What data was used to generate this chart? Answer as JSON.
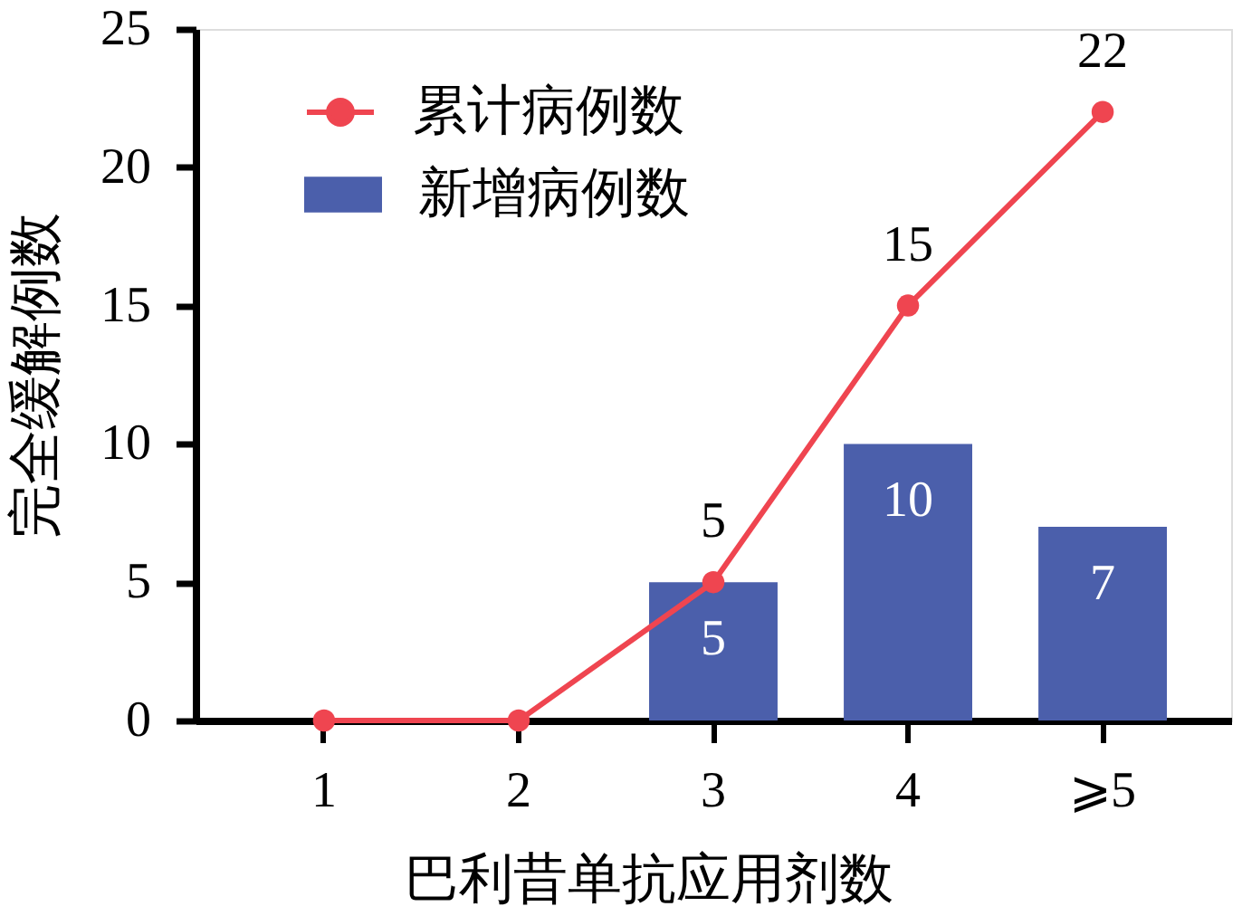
{
  "chart_data": {
    "type": "bar",
    "xlabel": "巴利昔单抗应用剂数",
    "ylabel": "完全缓解例数",
    "categories": [
      "1",
      "2",
      "3",
      "4",
      "⩾5"
    ],
    "series": [
      {
        "name": "累计病例数",
        "type": "line",
        "color": "#ef4550",
        "values": [
          0,
          0,
          5,
          15,
          22
        ],
        "value_labels": [
          null,
          null,
          "5",
          "15",
          "22"
        ]
      },
      {
        "name": "新增病例数",
        "color": "#4b5fab",
        "values": [
          0,
          0,
          5,
          10,
          7
        ],
        "value_labels": [
          null,
          null,
          "5",
          "10",
          "7"
        ]
      }
    ],
    "ylim": [
      0,
      25
    ],
    "yticks": [
      0,
      5,
      10,
      15,
      20,
      25
    ],
    "legend": "top left",
    "marker": "circle"
  }
}
